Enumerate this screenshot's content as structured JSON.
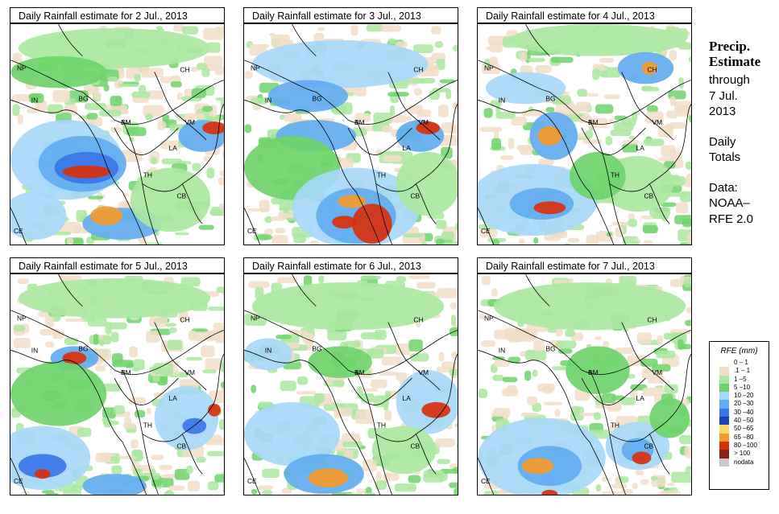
{
  "panels": [
    {
      "title": "Daily Rainfall estimate for  2 Jul., 2013"
    },
    {
      "title": "Daily Rainfall estimate for  3 Jul., 2013"
    },
    {
      "title": "Daily Rainfall estimate for  4 Jul., 2013"
    },
    {
      "title": "Daily Rainfall estimate for  5 Jul., 2013"
    },
    {
      "title": "Daily Rainfall estimate for  6 Jul., 2013"
    },
    {
      "title": "Daily Rainfall estimate for  7 Jul., 2013"
    }
  ],
  "country_labels": [
    "NP",
    "CH",
    "IN",
    "BG",
    "BM",
    "VM",
    "LA",
    "TH",
    "CB",
    "CE"
  ],
  "sidebar": {
    "title_line1": "Precip.",
    "title_line2": "Estimate",
    "through": "through",
    "date_line1": "7 Jul.",
    "date_line2": "2013",
    "daily_line1": "Daily",
    "daily_line2": "Totals",
    "data_line1": "Data:",
    "data_line2": "NOAA–",
    "data_line3": "RFE 2.0"
  },
  "legend": {
    "title": "RFE (mm)",
    "items": [
      {
        "label": "0 – 1",
        "color": "#ffffff"
      },
      {
        "label": ".1 – 1",
        "color": "#f1dec8"
      },
      {
        "label": "1 –5",
        "color": "#aae8a0"
      },
      {
        "label": "5 –10",
        "color": "#6ed46a"
      },
      {
        "label": "10 –20",
        "color": "#a6d8f8"
      },
      {
        "label": "20 –30",
        "color": "#62acf0"
      },
      {
        "label": "30 –40",
        "color": "#3a76e8"
      },
      {
        "label": "40 –50",
        "color": "#1f3fbf"
      },
      {
        "label": "50 –65",
        "color": "#f7d868"
      },
      {
        "label": "65 –80",
        "color": "#f59a2a"
      },
      {
        "label": "80 –100",
        "color": "#d9300c"
      },
      {
        "label": "> 100",
        "color": "#8c2010"
      },
      {
        "label": "nodata",
        "color": "#c8c8c8"
      }
    ]
  }
}
